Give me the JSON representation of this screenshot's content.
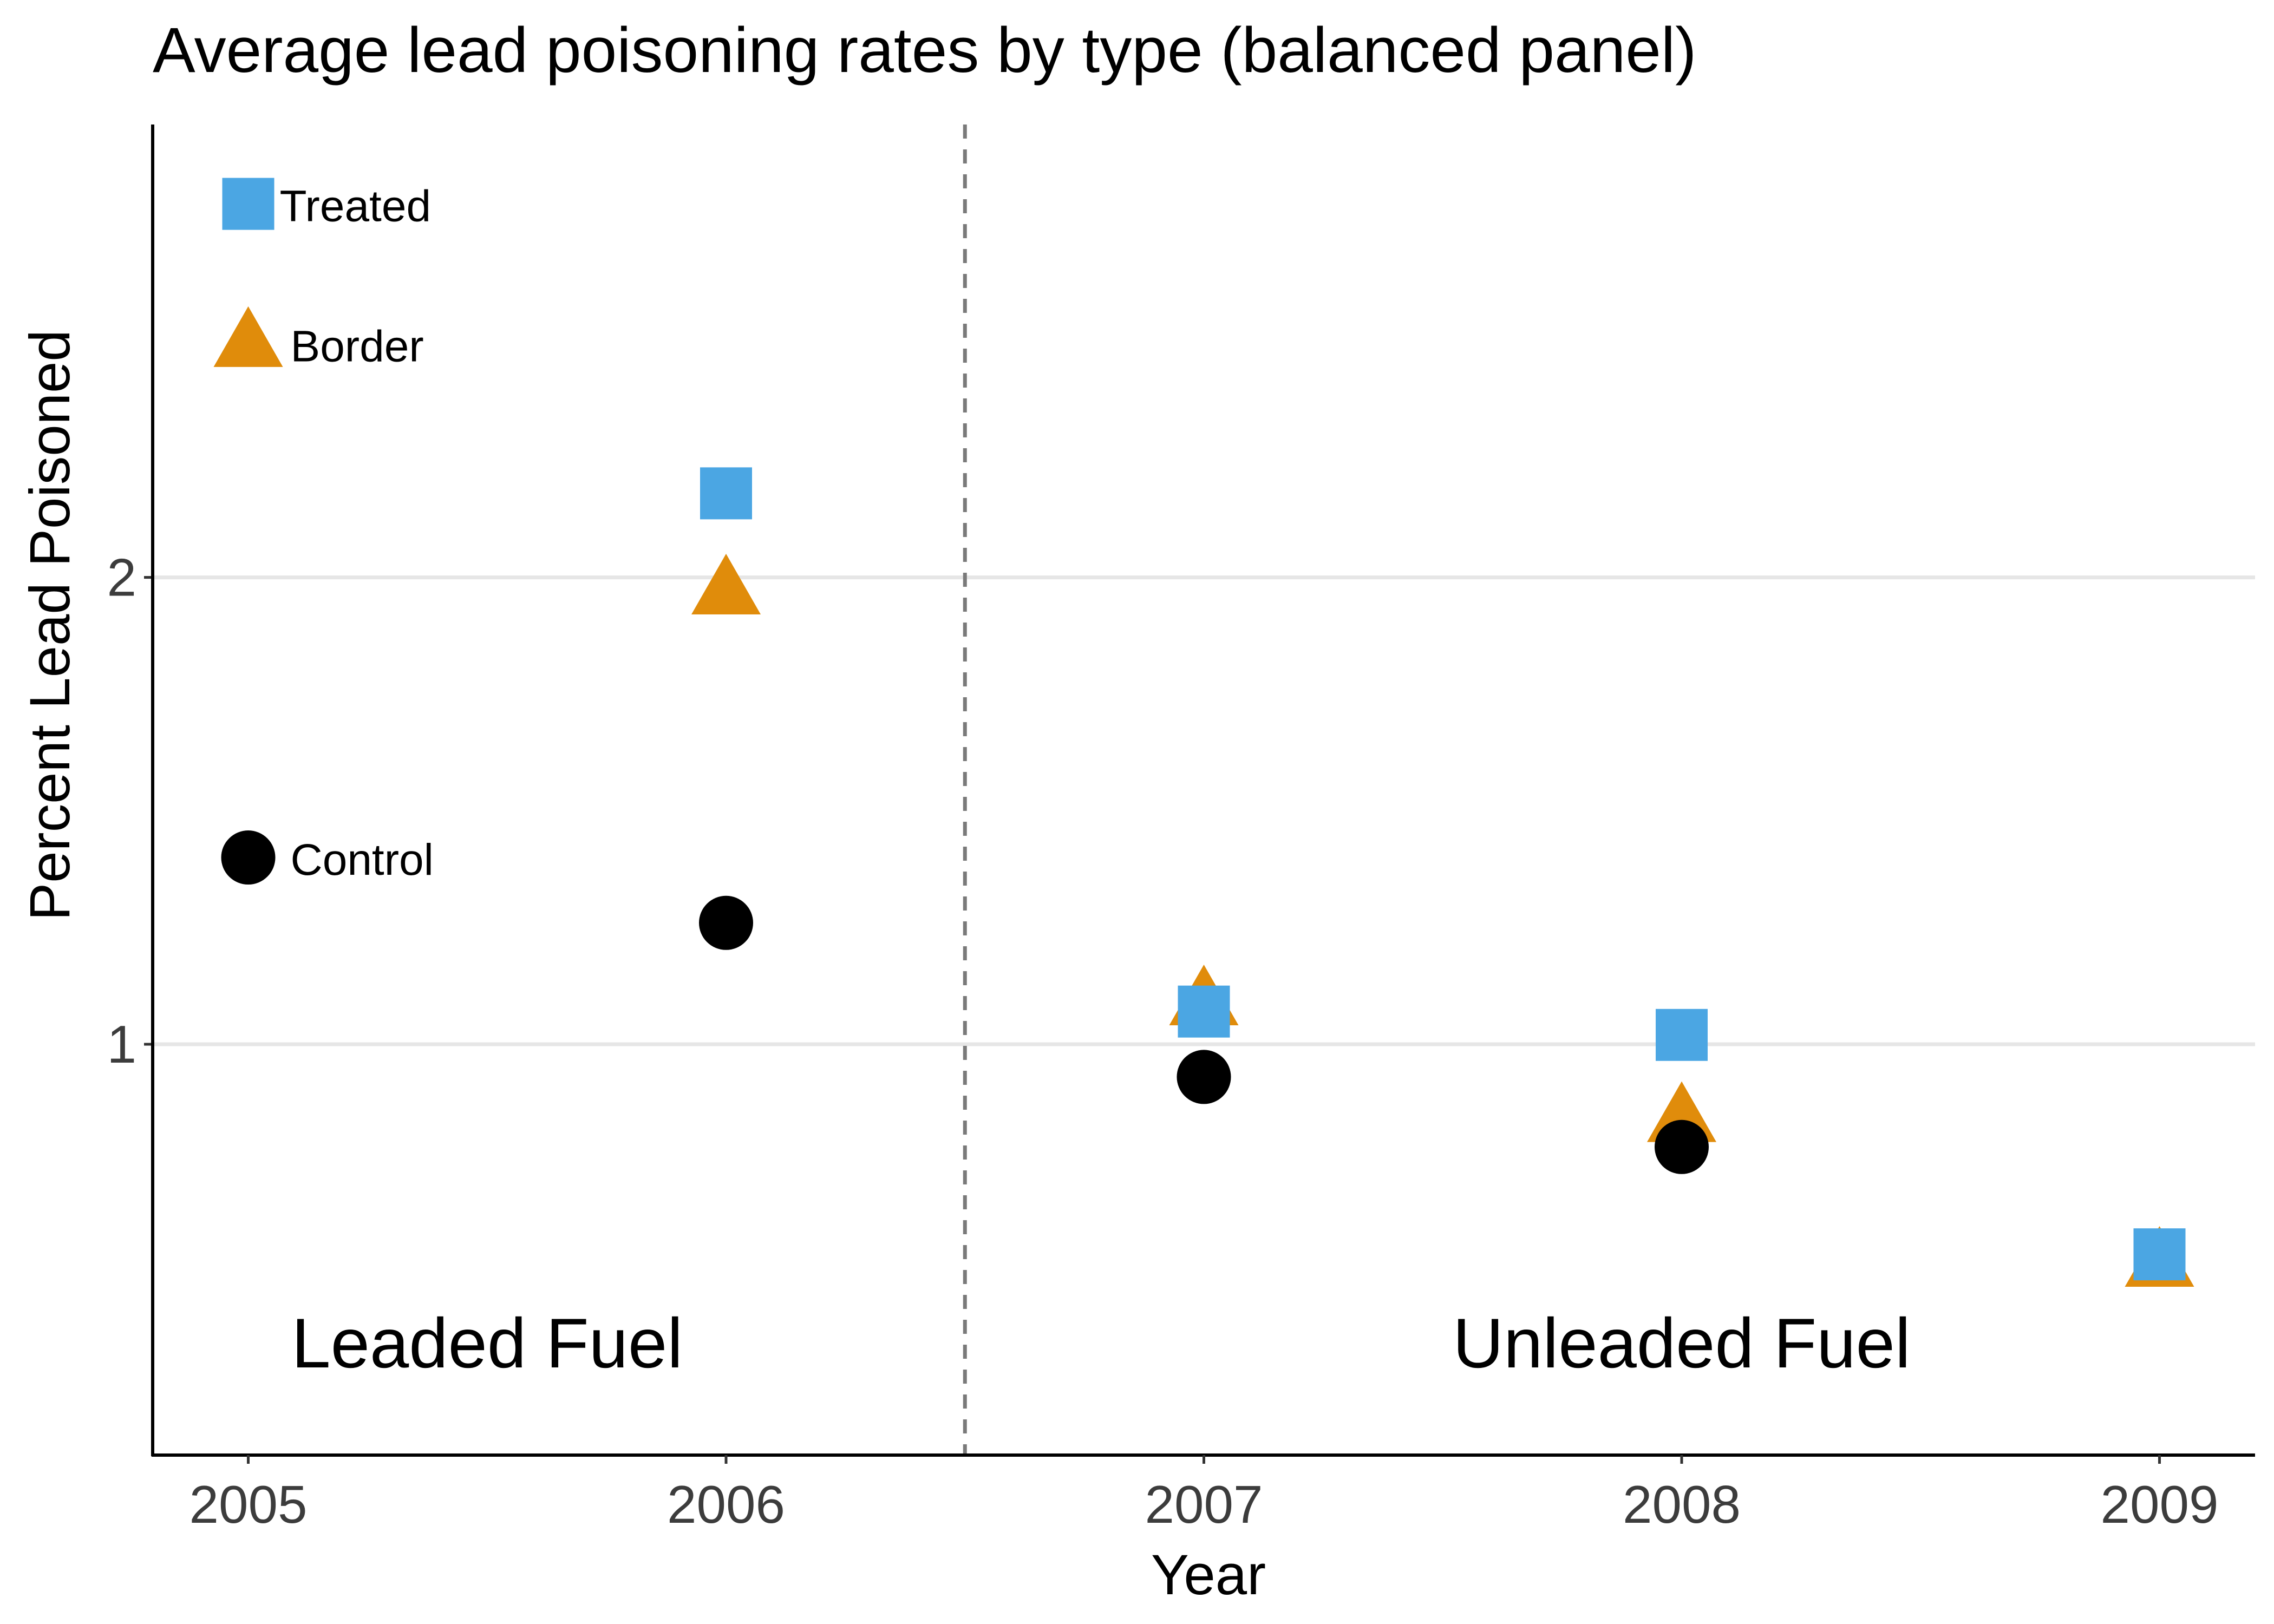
{
  "chart_data": {
    "type": "scatter",
    "title": "Average lead poisoning rates by type (balanced panel)",
    "xlabel": "Year",
    "ylabel": "Percent Lead Poisoned",
    "x": [
      2005,
      2006,
      2007,
      2008,
      2009
    ],
    "x_ticks": [
      "2005",
      "2006",
      "2007",
      "2008",
      "2009"
    ],
    "y_ticks": [
      "1",
      "2"
    ],
    "xlim": [
      2004.8,
      2009.2
    ],
    "ylim": [
      0.12,
      2.97
    ],
    "grid": "horizontal major lines only",
    "event_line": {
      "x": 2006.5,
      "style": "dashed"
    },
    "regions": [
      {
        "label": "Leaded Fuel",
        "x": 2005.5,
        "y": 0.36
      },
      {
        "label": "Unleaded Fuel",
        "x": 2008,
        "y": 0.36
      }
    ],
    "series": [
      {
        "name": "Treated",
        "marker": "square",
        "color": "#4ba6e3",
        "points": [
          [
            2006,
            2.18
          ],
          [
            2007,
            1.07
          ],
          [
            2008,
            1.02
          ],
          [
            2009,
            0.55
          ]
        ]
      },
      {
        "name": "Border",
        "marker": "triangle",
        "color": "#e08c0b",
        "points": [
          [
            2006,
            1.97
          ],
          [
            2007,
            1.09
          ],
          [
            2008,
            0.84
          ],
          [
            2009,
            0.53
          ]
        ]
      },
      {
        "name": "Control",
        "marker": "circle",
        "color": "#000000",
        "points": [
          [
            2006,
            1.26
          ],
          [
            2007,
            0.93
          ],
          [
            2008,
            0.78
          ]
        ]
      }
    ],
    "legend": {
      "placement": "inside top-left",
      "entries": [
        {
          "name": "Treated",
          "marker": "square",
          "color": "#4ba6e3",
          "y": 2.8
        },
        {
          "name": "Border",
          "marker": "triangle",
          "color": "#e08c0b",
          "y": 2.5
        },
        {
          "name": "Control",
          "marker": "circle",
          "color": "#000000",
          "y": 1.4
        }
      ]
    }
  }
}
